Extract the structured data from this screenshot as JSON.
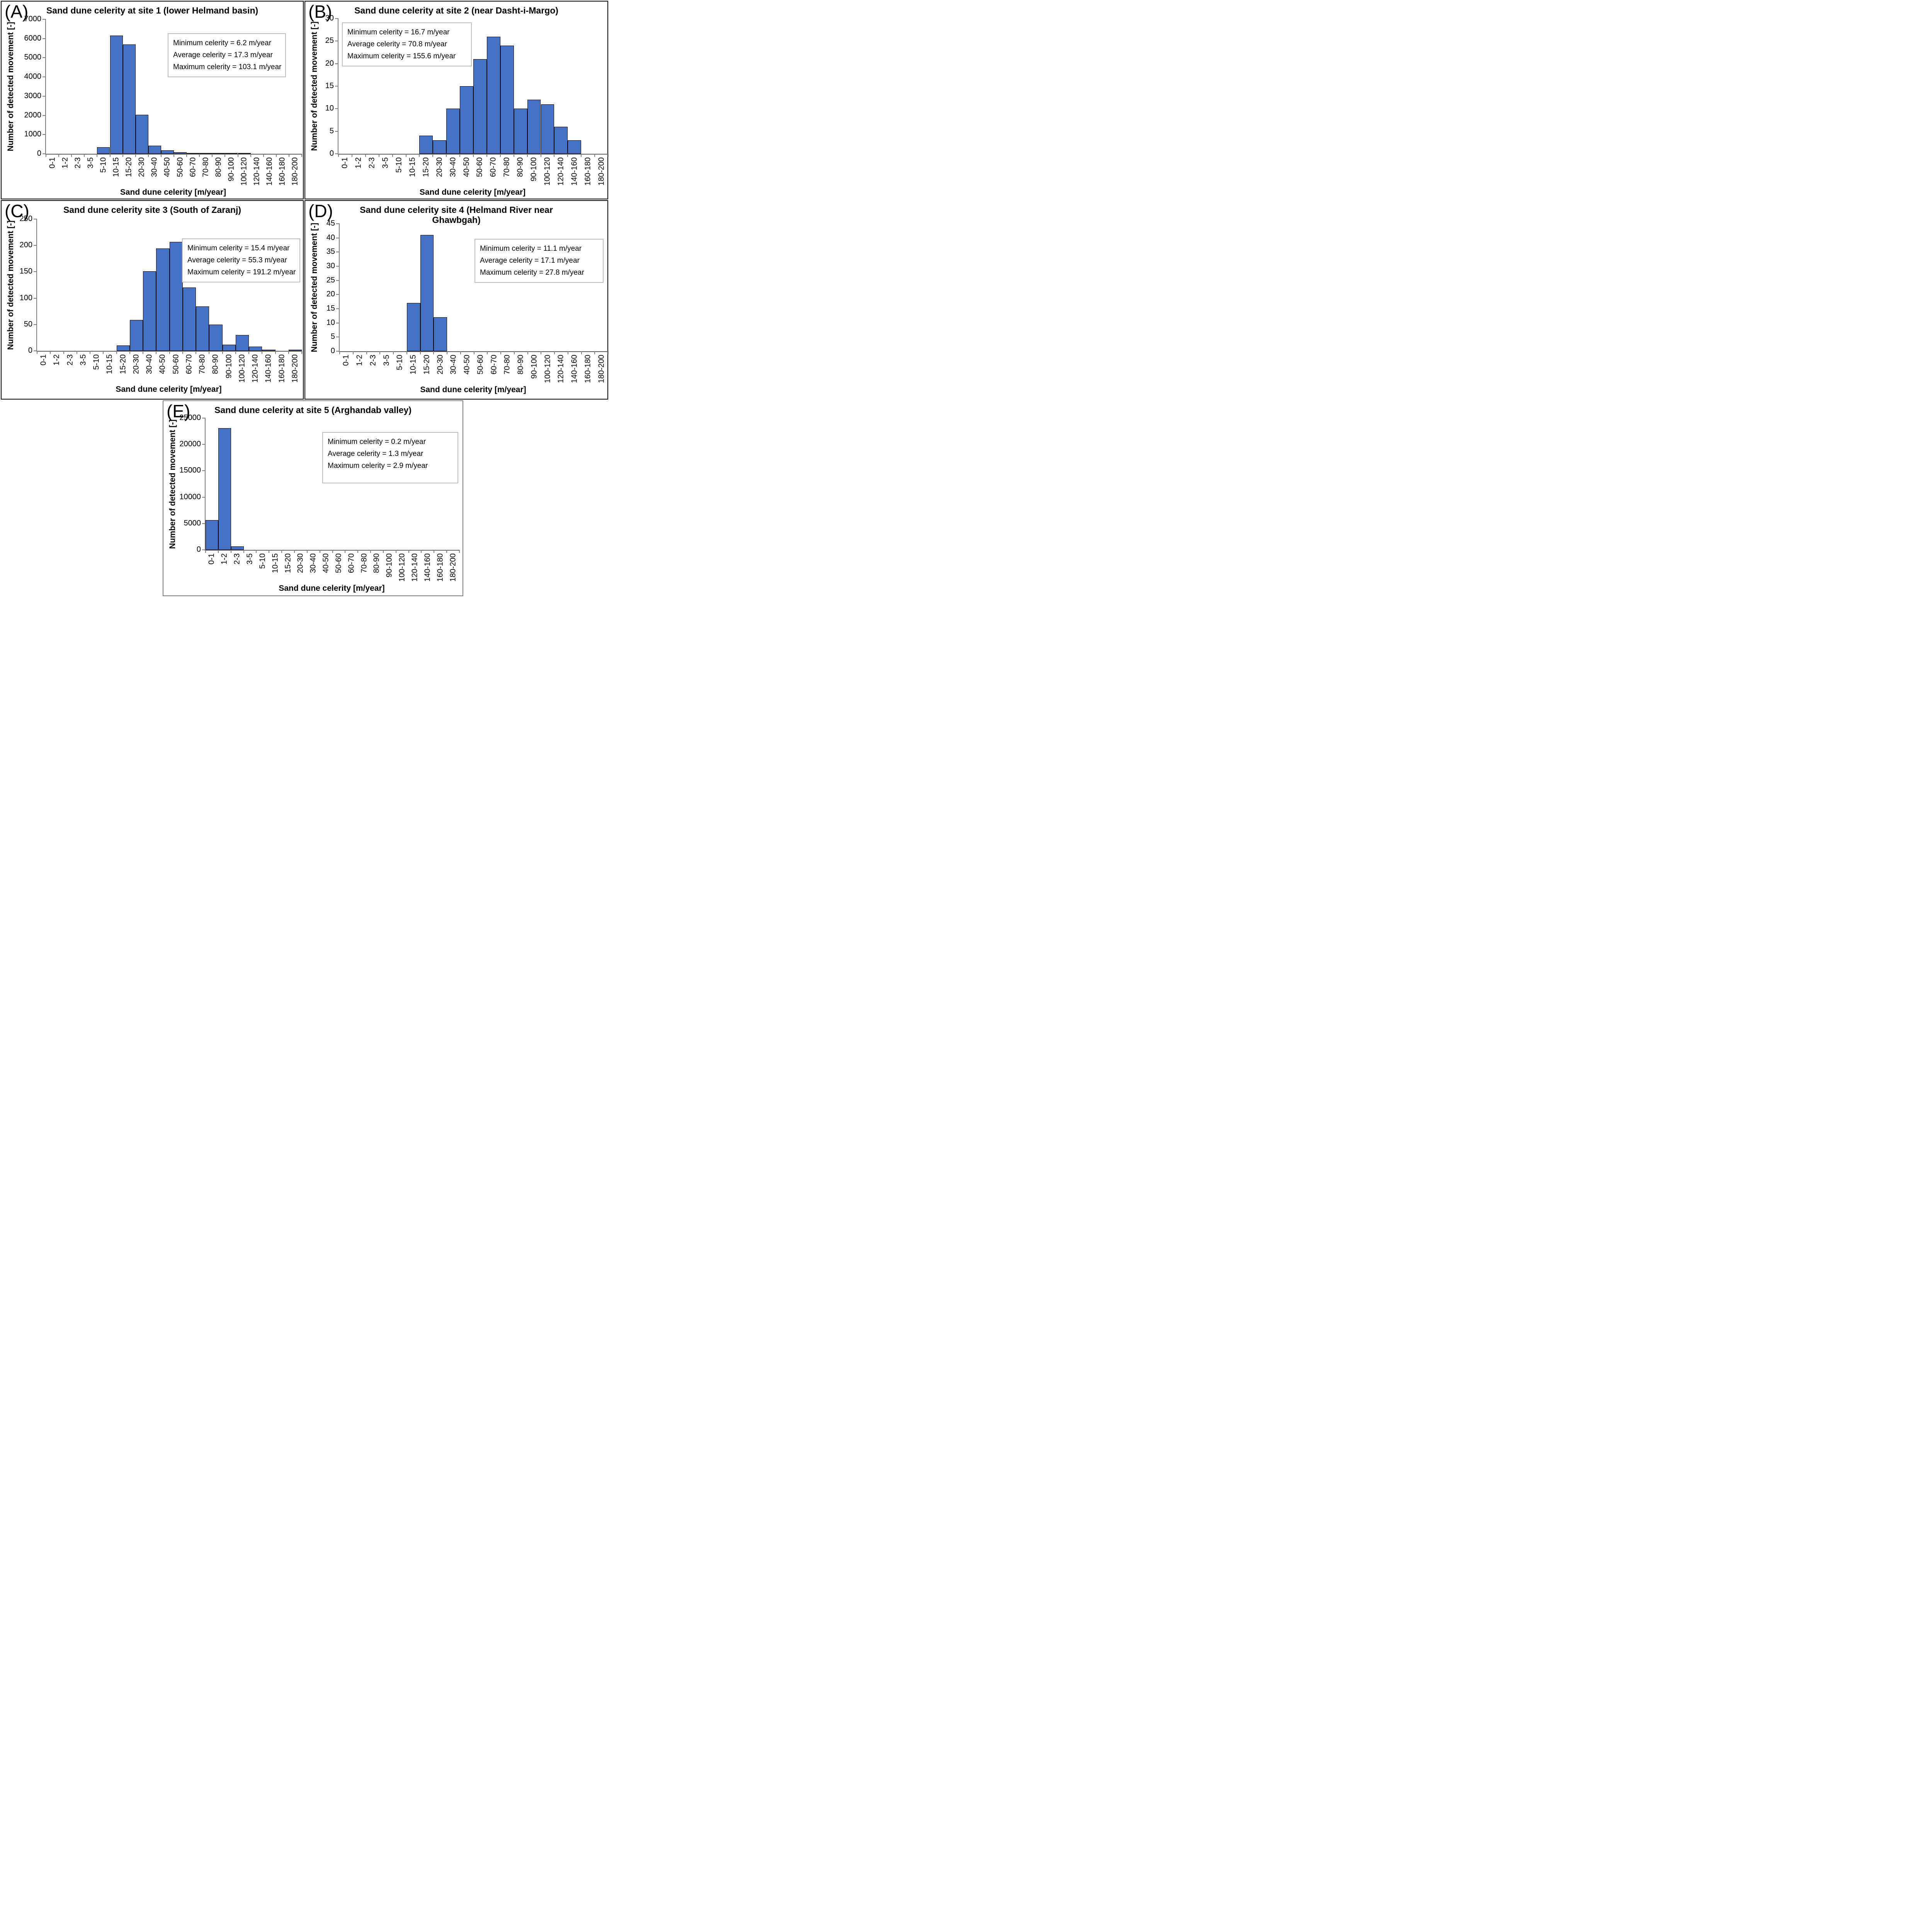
{
  "colors": {
    "bar_fill": "#4472C4",
    "bar_border": "#000000",
    "axis_line": "#7F7F7F",
    "stats_border": "#BFBFBF",
    "panel_border": "#000000",
    "panel_e_border": "#7F7F7F"
  },
  "chart_data": [
    {
      "type": "bar",
      "panel_label": "(A)",
      "title": "Sand dune celerity  at site 1 (lower Helmand basin)",
      "xlabel": "Sand dune celerity [m/year]",
      "ylabel": "Number of  detected movement [-]",
      "categories": [
        "0-1",
        "1-2",
        "2-3",
        "3-5",
        "5-10",
        "10-15",
        "15-20",
        "20-30",
        "30-40",
        "40-50",
        "50-60",
        "60-70",
        "70-80",
        "80-90",
        "90-100",
        "100-120",
        "120-140",
        "140-160",
        "160-180",
        "180-200"
      ],
      "values": [
        0,
        0,
        0,
        0,
        350,
        6150,
        5700,
        2030,
        430,
        175,
        80,
        30,
        15,
        12,
        10,
        8,
        0,
        0,
        0,
        0
      ],
      "ylim": [
        0,
        7000
      ],
      "ytick_step": 1000,
      "grid": false,
      "legend": null,
      "stats": [
        "Minimum  celerity = 6.2 m/year",
        "Average celerity = 17.3 m/year",
        "Maximum celerity = 103.1 m/year"
      ]
    },
    {
      "type": "bar",
      "panel_label": "(B)",
      "title": "Sand dune celerity at site 2 (near Dasht-i-Margo)",
      "xlabel": "Sand dune celerity [m/year]",
      "ylabel": "Number of  detected movement [-]",
      "categories": [
        "0-1",
        "1-2",
        "2-3",
        "3-5",
        "5-10",
        "10-15",
        "15-20",
        "20-30",
        "30-40",
        "40-50",
        "50-60",
        "60-70",
        "70-80",
        "80-90",
        "90-100",
        "100-120",
        "120-140",
        "140-160",
        "160-180",
        "180-200"
      ],
      "values": [
        0,
        0,
        0,
        0,
        0,
        0,
        4,
        3,
        10,
        15,
        21,
        26,
        24,
        10,
        12,
        11,
        6,
        3,
        0,
        0
      ],
      "ylim": [
        0,
        30
      ],
      "ytick_step": 5,
      "grid": false,
      "legend": null,
      "stats": [
        "Minimum  celerity = 16.7 m/year",
        "Average celerity = 70.8 m/year",
        "Maximum celerity = 155.6 m/year"
      ]
    },
    {
      "type": "bar",
      "panel_label": "(C)",
      "title": "Sand dune celerity site 3 (South of Zaranj)",
      "xlabel": "Sand dune celerity [m/year]",
      "ylabel": "Number of  detected movement [-]",
      "categories": [
        "0-1",
        "1-2",
        "2-3",
        "3-5",
        "5-10",
        "10-15",
        "15-20",
        "20-30",
        "30-40",
        "40-50",
        "50-60",
        "60-70",
        "70-80",
        "80-90",
        "90-100",
        "100-120",
        "120-140",
        "140-160",
        "160-180",
        "180-200"
      ],
      "values": [
        0,
        0,
        0,
        0,
        0,
        0,
        10,
        59,
        151,
        194,
        207,
        120,
        84,
        50,
        12,
        30,
        8,
        2,
        0,
        2
      ],
      "ylim": [
        0,
        250
      ],
      "ytick_step": 50,
      "grid": false,
      "legend": null,
      "stats": [
        "Minimum  celerity = 15.4 m/year",
        "Average celerity = 55.3 m/year",
        "Maximum celerity = 191.2 m/year"
      ]
    },
    {
      "type": "bar",
      "panel_label": "(D)",
      "title": "Sand dune celerity site 4 (Helmand River near\nGhawbgah)",
      "xlabel": "Sand dune celerity [m/year]",
      "ylabel": "Number of  detected movement [-]",
      "categories": [
        "0-1",
        "1-2",
        "2-3",
        "3-5",
        "5-10",
        "10-15",
        "15-20",
        "20-30",
        "30-40",
        "40-50",
        "50-60",
        "60-70",
        "70-80",
        "80-90",
        "90-100",
        "100-120",
        "120-140",
        "140-160",
        "160-180",
        "180-200"
      ],
      "values": [
        0,
        0,
        0,
        0,
        0,
        17,
        41,
        12,
        0,
        0,
        0,
        0,
        0,
        0,
        0,
        0,
        0,
        0,
        0,
        0
      ],
      "ylim": [
        0,
        45
      ],
      "ytick_step": 5,
      "grid": false,
      "legend": null,
      "stats": [
        "Minimum  celerity = 11.1 m/year",
        "Average celerity = 17.1 m/year",
        "Maximum celerity = 27.8 m/year"
      ]
    },
    {
      "type": "bar",
      "panel_label": "(E)",
      "title": "Sand dune celerity at site 5 (Arghandab valley)",
      "xlabel": "Sand dune celerity [m/year]",
      "ylabel": "Number of  detected movement [-]",
      "categories": [
        "0-1",
        "1-2",
        "2-3",
        "3-5",
        "5-10",
        "10-15",
        "15-20",
        "20-30",
        "30-40",
        "40-50",
        "50-60",
        "60-70",
        "70-80",
        "80-90",
        "90-100",
        "100-120",
        "120-140",
        "140-160",
        "160-180",
        "180-200"
      ],
      "values": [
        5650,
        23100,
        650,
        0,
        0,
        0,
        0,
        0,
        0,
        0,
        0,
        0,
        0,
        0,
        0,
        0,
        0,
        0,
        0,
        0
      ],
      "ylim": [
        0,
        25000
      ],
      "ytick_step": 5000,
      "grid": false,
      "legend": null,
      "stats": [
        "Minimum  celerity = 0.2 m/year",
        "Average celerity = 1.3 m/year",
        "Maximum celerity = 2.9 m/year"
      ]
    }
  ]
}
